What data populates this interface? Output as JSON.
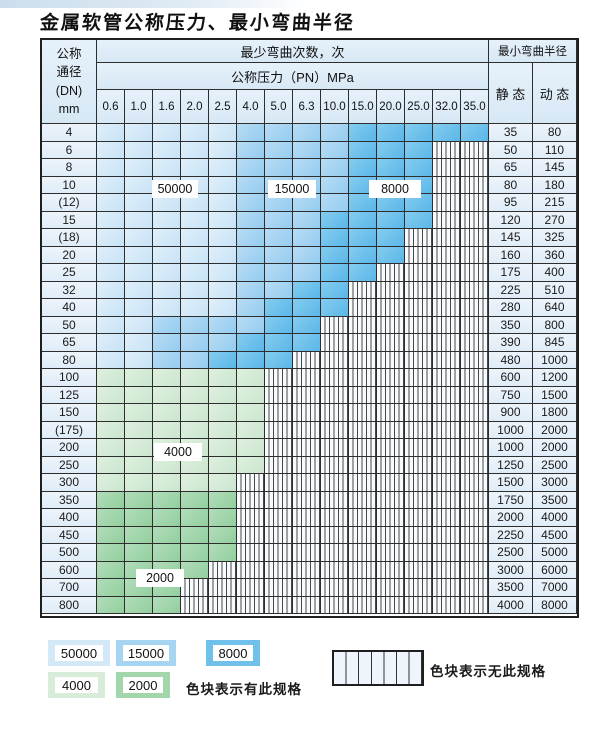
{
  "page": {
    "title": "金属软管公称压力、最小弯曲半径"
  },
  "table": {
    "header": {
      "dn_lines": [
        "公称",
        "通径",
        "(DN)",
        "mm"
      ],
      "bend_times": "最少弯曲次数，次",
      "pressure": "公称压力（PN）MPa",
      "radius": "最小弯曲半径",
      "static": "静 态",
      "dynamic": "动 态",
      "pressure_cols": [
        "0.6",
        "1.0",
        "1.6",
        "2.0",
        "2.5",
        "4.0",
        "5.0",
        "6.3",
        "10.0",
        "15.0",
        "20.0",
        "25.0",
        "32.0",
        "35.0"
      ]
    },
    "rows": [
      {
        "dn": "4",
        "static": "35",
        "dynamic": "80",
        "bands": [
          [
            "50000",
            0,
            4
          ],
          [
            "15000",
            5,
            8
          ],
          [
            "8000",
            9,
            13
          ]
        ]
      },
      {
        "dn": "6",
        "static": "50",
        "dynamic": "110",
        "bands": [
          [
            "50000",
            0,
            4
          ],
          [
            "15000",
            5,
            8
          ],
          [
            "8000",
            9,
            11
          ]
        ]
      },
      {
        "dn": "8",
        "static": "65",
        "dynamic": "145",
        "bands": [
          [
            "50000",
            0,
            4
          ],
          [
            "15000",
            5,
            8
          ],
          [
            "8000",
            9,
            11
          ]
        ]
      },
      {
        "dn": "10",
        "static": "80",
        "dynamic": "180",
        "bands": [
          [
            "50000",
            0,
            4
          ],
          [
            "15000",
            5,
            8
          ],
          [
            "8000",
            9,
            11
          ]
        ]
      },
      {
        "dn": "(12)",
        "static": "95",
        "dynamic": "215",
        "bands": [
          [
            "50000",
            0,
            4
          ],
          [
            "15000",
            5,
            8
          ],
          [
            "8000",
            9,
            11
          ]
        ]
      },
      {
        "dn": "15",
        "static": "120",
        "dynamic": "270",
        "bands": [
          [
            "50000",
            0,
            4
          ],
          [
            "15000",
            5,
            7
          ],
          [
            "8000",
            8,
            11
          ]
        ]
      },
      {
        "dn": "(18)",
        "static": "145",
        "dynamic": "325",
        "bands": [
          [
            "50000",
            0,
            4
          ],
          [
            "15000",
            5,
            7
          ],
          [
            "8000",
            8,
            10
          ]
        ]
      },
      {
        "dn": "20",
        "static": "160",
        "dynamic": "360",
        "bands": [
          [
            "50000",
            0,
            4
          ],
          [
            "15000",
            5,
            7
          ],
          [
            "8000",
            8,
            10
          ]
        ]
      },
      {
        "dn": "25",
        "static": "175",
        "dynamic": "400",
        "bands": [
          [
            "50000",
            0,
            4
          ],
          [
            "15000",
            5,
            7
          ],
          [
            "8000",
            8,
            9
          ]
        ]
      },
      {
        "dn": "32",
        "static": "225",
        "dynamic": "510",
        "bands": [
          [
            "50000",
            0,
            4
          ],
          [
            "15000",
            5,
            6
          ],
          [
            "8000",
            7,
            8
          ]
        ]
      },
      {
        "dn": "40",
        "static": "280",
        "dynamic": "640",
        "bands": [
          [
            "50000",
            0,
            4
          ],
          [
            "15000",
            5,
            5
          ],
          [
            "8000",
            6,
            8
          ]
        ]
      },
      {
        "dn": "50",
        "static": "350",
        "dynamic": "800",
        "bands": [
          [
            "50000",
            0,
            1
          ],
          [
            "15000",
            2,
            5
          ],
          [
            "8000",
            6,
            7
          ]
        ]
      },
      {
        "dn": "65",
        "static": "390",
        "dynamic": "845",
        "bands": [
          [
            "50000",
            0,
            1
          ],
          [
            "15000",
            2,
            4
          ],
          [
            "8000",
            5,
            7
          ]
        ]
      },
      {
        "dn": "80",
        "static": "480",
        "dynamic": "1000",
        "bands": [
          [
            "50000",
            0,
            1
          ],
          [
            "15000",
            2,
            3
          ],
          [
            "8000",
            4,
            6
          ]
        ]
      },
      {
        "dn": "100",
        "static": "600",
        "dynamic": "1200",
        "bands": [
          [
            "4000",
            0,
            5
          ]
        ]
      },
      {
        "dn": "125",
        "static": "750",
        "dynamic": "1500",
        "bands": [
          [
            "4000",
            0,
            5
          ]
        ]
      },
      {
        "dn": "150",
        "static": "900",
        "dynamic": "1800",
        "bands": [
          [
            "4000",
            0,
            5
          ]
        ]
      },
      {
        "dn": "(175)",
        "static": "1000",
        "dynamic": "2000",
        "bands": [
          [
            "4000",
            0,
            5
          ]
        ]
      },
      {
        "dn": "200",
        "static": "1000",
        "dynamic": "2000",
        "bands": [
          [
            "4000",
            0,
            5
          ]
        ]
      },
      {
        "dn": "250",
        "static": "1250",
        "dynamic": "2500",
        "bands": [
          [
            "4000",
            0,
            5
          ]
        ]
      },
      {
        "dn": "300",
        "static": "1500",
        "dynamic": "3000",
        "bands": [
          [
            "4000",
            0,
            4
          ]
        ]
      },
      {
        "dn": "350",
        "static": "1750",
        "dynamic": "3500",
        "bands": [
          [
            "2000",
            0,
            4
          ]
        ]
      },
      {
        "dn": "400",
        "static": "2000",
        "dynamic": "4000",
        "bands": [
          [
            "2000",
            0,
            4
          ]
        ]
      },
      {
        "dn": "450",
        "static": "2250",
        "dynamic": "4500",
        "bands": [
          [
            "2000",
            0,
            4
          ]
        ]
      },
      {
        "dn": "500",
        "static": "2500",
        "dynamic": "5000",
        "bands": [
          [
            "2000",
            0,
            4
          ]
        ]
      },
      {
        "dn": "600",
        "static": "3000",
        "dynamic": "6000",
        "bands": [
          [
            "2000",
            0,
            3
          ]
        ]
      },
      {
        "dn": "700",
        "static": "3500",
        "dynamic": "7000",
        "bands": [
          [
            "2000",
            0,
            2
          ]
        ]
      },
      {
        "dn": "800",
        "static": "4000",
        "dynamic": "8000",
        "bands": [
          [
            "2000",
            0,
            2
          ]
        ]
      }
    ],
    "overlay_labels": [
      "50000",
      "15000",
      "8000",
      "4000",
      "2000"
    ]
  },
  "legend": {
    "swatches_row1": [
      {
        "label": "50000",
        "shade": "50000"
      },
      {
        "label": "15000",
        "shade": "15000"
      },
      {
        "label": "8000",
        "shade": "8000"
      }
    ],
    "swatches_row2": [
      {
        "label": "4000",
        "shade": "4000"
      },
      {
        "label": "2000",
        "shade": "2000"
      }
    ],
    "has_spec_text": "色块表示有此规格",
    "no_spec_text": "色块表示无此规格"
  },
  "colors": {
    "c50000": "#d4e9f8",
    "c15000": "#a6d5f2",
    "c8000": "#6fc1ec",
    "c4000": "#d7ecd9",
    "c2000": "#a2d6ab",
    "grid": "#2e2e2e"
  }
}
